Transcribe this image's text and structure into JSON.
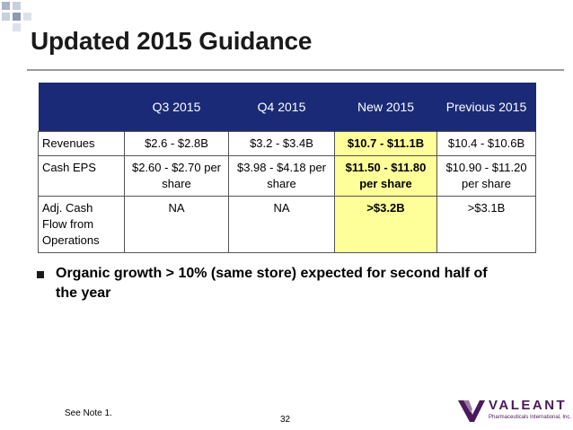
{
  "title": "Updated 2015 Guidance",
  "table": {
    "headers": [
      "",
      "Q3 2015",
      "Q4 2015",
      "New 2015",
      "Previous 2015"
    ],
    "rows": [
      {
        "label": "Revenues",
        "q3": "$2.6 - $2.8B",
        "q4": "$3.2 - $3.4B",
        "new": "$10.7 - $11.1B",
        "prev": "$10.4 - $10.6B"
      },
      {
        "label": "Cash EPS",
        "q3": "$2.60 - $2.70 per share",
        "q4": "$3.98 - $4.18 per share",
        "new": "$11.50 - $11.80 per share",
        "prev": "$10.90 - $11.20 per share"
      },
      {
        "label": "Adj. Cash Flow from Operations",
        "q3": "NA",
        "q4": "NA",
        "new": ">$3.2B",
        "prev": ">$3.1B"
      }
    ]
  },
  "bullet": "Organic growth > 10% (same store) expected for second half of the year",
  "footnote": "See Note 1.",
  "page_number": "32",
  "logo": {
    "name": "VALEANT",
    "tagline": "Pharmaceuticals International, Inc."
  },
  "colors": {
    "header_bg": "#1a2a77",
    "highlight": "#ffff99",
    "logo": "#4a1a5a"
  }
}
